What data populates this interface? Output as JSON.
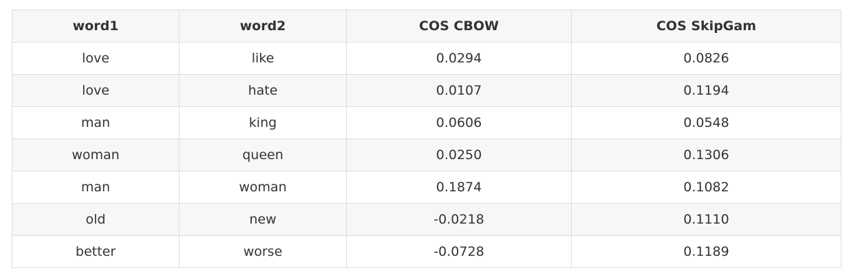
{
  "table": {
    "headers": [
      "word1",
      "word2",
      "COS CBOW",
      "COS SkipGam"
    ],
    "rows": [
      [
        "love",
        "like",
        "0.0294",
        "0.0826"
      ],
      [
        "love",
        "hate",
        "0.0107",
        "0.1194"
      ],
      [
        "man",
        "king",
        "0.0606",
        "0.0548"
      ],
      [
        "woman",
        "queen",
        "0.0250",
        "0.1306"
      ],
      [
        "man",
        "woman",
        "0.1874",
        "0.1082"
      ],
      [
        "old",
        "new",
        "-0.0218",
        "0.1110"
      ],
      [
        "better",
        "worse",
        "-0.0728",
        "0.1189"
      ]
    ]
  }
}
